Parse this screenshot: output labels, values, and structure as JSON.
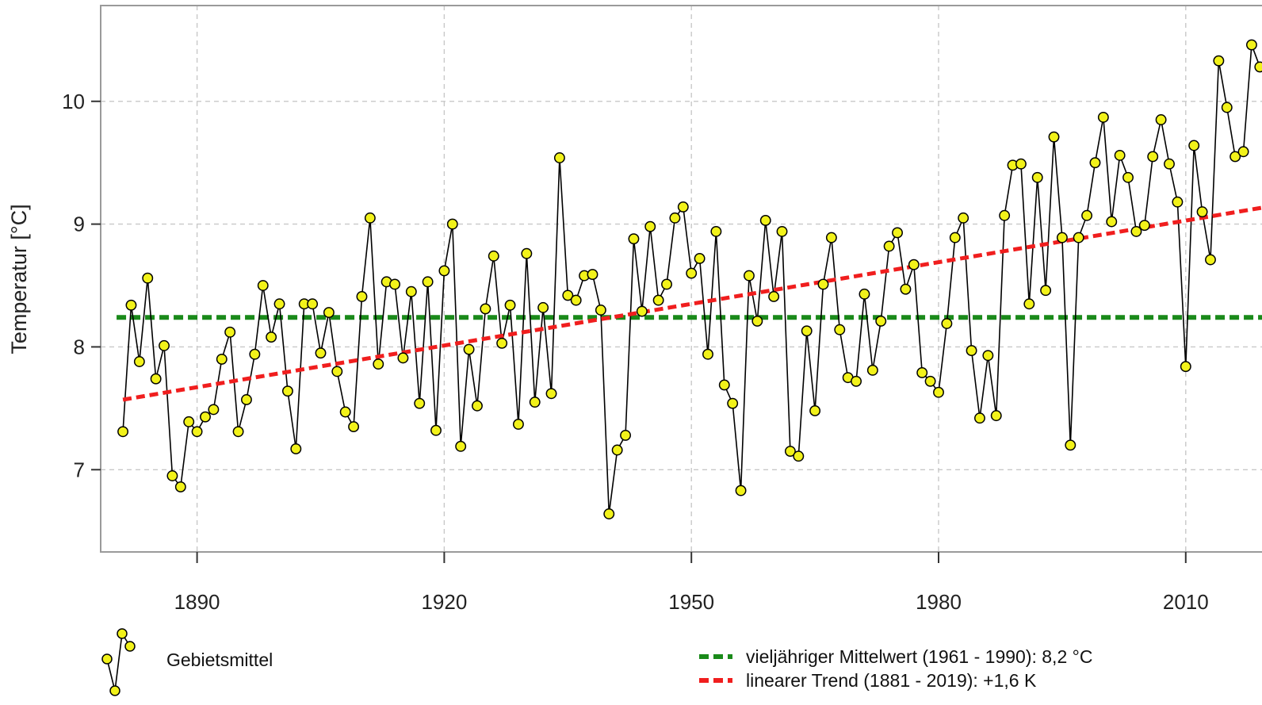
{
  "chart_data": {
    "type": "line",
    "ylabel": "Temperatur [°C]",
    "xlabel": "",
    "xlim": [
      1878.3,
      2020.7
    ],
    "ylim": [
      6.33,
      10.78
    ],
    "x_ticks": [
      1890,
      1920,
      1950,
      1980,
      2010
    ],
    "y_ticks": [
      7,
      8,
      9,
      10
    ],
    "grid": true,
    "legend_position": "bottom",
    "colors": {
      "series_line": "#000000",
      "marker_fill": "#f2f21a",
      "marker_stroke": "#000000",
      "mean_line": "#1a8a1a",
      "trend_line": "#f01e1e",
      "grid": "#c8c8c8",
      "frame": "#9a9a9a"
    },
    "series": [
      {
        "name": "Gebietsmittel",
        "x_start": 1881,
        "values": [
          7.31,
          8.34,
          7.88,
          8.56,
          7.74,
          8.01,
          6.95,
          6.86,
          7.39,
          7.31,
          7.43,
          7.49,
          7.9,
          8.12,
          7.31,
          7.57,
          7.94,
          8.5,
          8.08,
          8.35,
          7.64,
          7.17,
          8.35,
          8.35,
          7.95,
          8.28,
          7.8,
          7.47,
          7.35,
          8.41,
          9.05,
          7.86,
          8.53,
          8.51,
          7.91,
          8.45,
          7.54,
          8.53,
          7.32,
          8.62,
          9.0,
          7.19,
          7.98,
          7.52,
          8.31,
          8.74,
          8.03,
          8.34,
          7.37,
          8.76,
          7.55,
          8.32,
          7.62,
          9.54,
          8.42,
          8.38,
          8.58,
          8.59,
          8.3,
          6.64,
          7.16,
          7.28,
          8.88,
          8.29,
          8.98,
          8.38,
          8.51,
          9.05,
          9.14,
          8.6,
          8.72,
          7.94,
          8.94,
          7.69,
          7.54,
          6.83,
          8.58,
          8.21,
          9.03,
          8.41,
          8.94,
          7.15,
          7.11,
          8.13,
          7.48,
          8.51,
          8.89,
          8.14,
          7.75,
          7.72,
          8.43,
          7.81,
          8.21,
          8.82,
          8.93,
          8.47,
          8.67,
          7.79,
          7.72,
          7.63,
          8.19,
          8.89,
          9.05,
          7.97,
          7.42,
          7.93,
          7.44,
          9.07,
          9.48,
          9.49,
          8.35,
          9.38,
          8.46,
          9.71,
          8.89,
          7.2,
          8.89,
          9.07,
          9.5,
          9.87,
          9.02,
          9.56,
          9.38,
          8.94,
          8.99,
          9.55,
          9.85,
          9.49,
          9.18,
          7.84,
          9.64,
          9.1,
          8.71,
          10.33,
          9.95,
          9.55,
          9.59,
          10.46,
          10.28
        ]
      }
    ],
    "reference_lines": [
      {
        "name": "vieljähriger Mittelwert (1961 - 1990): 8,2 °C",
        "type": "horizontal",
        "y": 8.24
      },
      {
        "name": "linearer Trend (1881 - 2019): +1,6 K",
        "type": "trend",
        "x": [
          1881,
          2020.7
        ],
        "y": [
          7.57,
          9.15
        ]
      }
    ],
    "legend": {
      "series_label": "Gebietsmittel",
      "mean_label": "vieljähriger Mittelwert (1961 - 1990): 8,2 °C",
      "trend_label": "linearer Trend (1881 - 2019): +1,6 K"
    }
  }
}
